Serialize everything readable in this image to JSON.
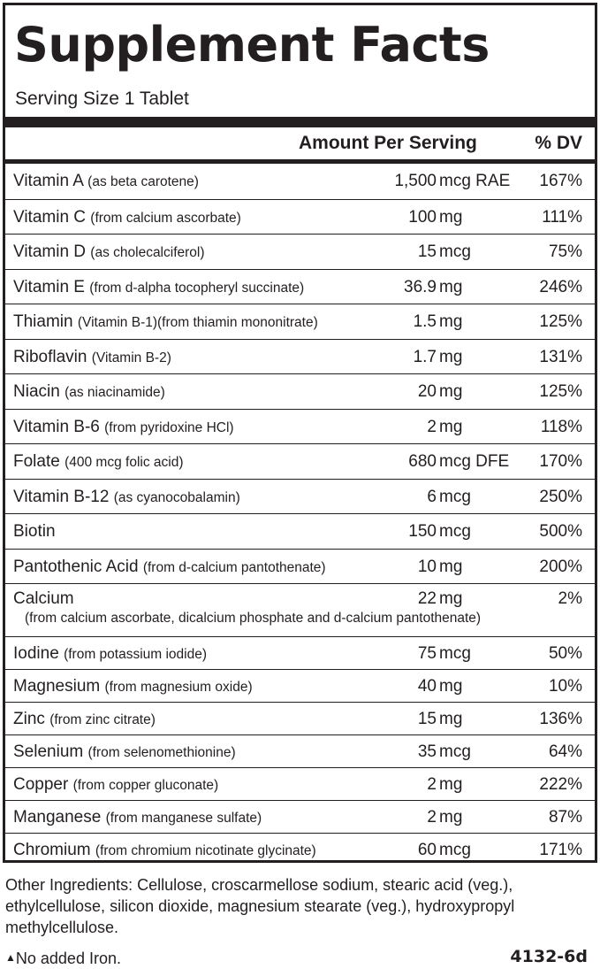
{
  "title": "Supplement Facts",
  "serving_size": "Serving Size 1 Tablet",
  "columns": {
    "amount": "Amount Per Serving",
    "dv": "% DV"
  },
  "nutrients": [
    {
      "name": "Vitamin A",
      "source": "(as beta carotene)",
      "amount": "1,500",
      "unit": "mcg RAE",
      "dv": "167%"
    },
    {
      "name": "Vitamin C",
      "source": "(from calcium ascorbate)",
      "amount": "100",
      "unit": "mg",
      "dv": "111%"
    },
    {
      "name": "Vitamin D",
      "source": "(as cholecalciferol)",
      "amount": "15",
      "unit": "mcg",
      "dv": "75%"
    },
    {
      "name": "Vitamin E",
      "source": "(from d-alpha tocopheryl succinate)",
      "amount": "36.9",
      "unit": "mg",
      "dv": "246%"
    },
    {
      "name": "Thiamin",
      "source": "(Vitamin B-1)(from thiamin mononitrate)",
      "amount": "1.5",
      "unit": "mg",
      "dv": "125%"
    },
    {
      "name": "Riboflavin",
      "source": "(Vitamin B-2)",
      "amount": "1.7",
      "unit": "mg",
      "dv": "131%"
    },
    {
      "name": "Niacin",
      "source": "(as niacinamide)",
      "amount": "20",
      "unit": "mg",
      "dv": "125%"
    },
    {
      "name": "Vitamin B-6",
      "source": "(from pyridoxine HCl)",
      "amount": "2",
      "unit": "mg",
      "dv": "118%"
    },
    {
      "name": "Folate",
      "source": "(400 mcg folic acid)",
      "amount": "680",
      "unit": "mcg DFE",
      "dv": "170%"
    },
    {
      "name": "Vitamin B-12",
      "source": "(as cyanocobalamin)",
      "amount": "6",
      "unit": "mcg",
      "dv": "250%"
    },
    {
      "name": "Biotin",
      "source": "",
      "amount": "150",
      "unit": "mcg",
      "dv": "500%"
    },
    {
      "name": "Pantothenic Acid",
      "source": "(from d-calcium pantothenate)",
      "amount": "10",
      "unit": "mg",
      "dv": "200%"
    },
    {
      "name": "Calcium",
      "source": "",
      "sub": "(from calcium ascorbate, dicalcium phosphate and d-calcium pantothenate)",
      "amount": "22",
      "unit": "mg",
      "dv": "2%"
    },
    {
      "name": "Iodine",
      "source": "(from potassium iodide)",
      "amount": "75",
      "unit": "mcg",
      "dv": "50%"
    },
    {
      "name": "Magnesium",
      "source": "(from magnesium oxide)",
      "amount": "40",
      "unit": "mg",
      "dv": "10%"
    },
    {
      "name": "Zinc",
      "source": "(from zinc citrate)",
      "amount": "15",
      "unit": "mg",
      "dv": "136%"
    },
    {
      "name": "Selenium",
      "source": "(from selenomethionine)",
      "amount": "35",
      "unit": "mcg",
      "dv": "64%"
    },
    {
      "name": "Copper",
      "source": "(from copper gluconate)",
      "amount": "2",
      "unit": "mg",
      "dv": "222%"
    },
    {
      "name": "Manganese",
      "source": "(from manganese sulfate)",
      "amount": "2",
      "unit": "mg",
      "dv": "87%"
    },
    {
      "name": "Chromium",
      "source": "(from chromium nicotinate glycinate)",
      "amount": "60",
      "unit": "mcg",
      "dv": "171%"
    }
  ],
  "other_ingredients": "Other Ingredients:  Cellulose, croscarmellose sodium, stearic acid (veg.), ethylcellulose, silicon dioxide, magnesium stearate (veg.), hydroxypropyl methylcellulose.",
  "footnote_marker": "▲",
  "footnote": "No added Iron.",
  "product_code": "4132-6d"
}
